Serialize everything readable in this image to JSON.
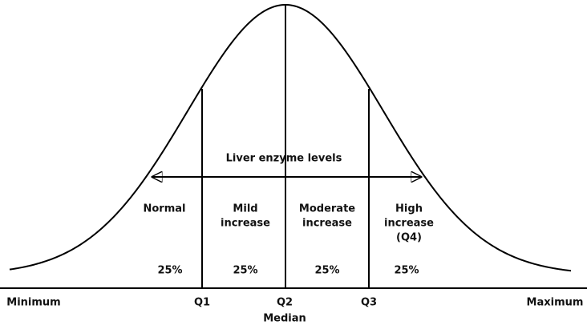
{
  "title": "Liver enzyme levels",
  "zones": [
    {
      "label": [
        "Normal"
      ],
      "share": "25%"
    },
    {
      "label": [
        "Mild",
        "increase"
      ],
      "share": "25%"
    },
    {
      "label": [
        "Moderate",
        "increase"
      ],
      "share": "25%"
    },
    {
      "label": [
        "High",
        "increase",
        "(Q4)"
      ],
      "share": "25%"
    }
  ],
  "axis_labels": [
    "Minimum",
    "Q1",
    "Q2",
    "Q3",
    "Maximum"
  ],
  "median_label": "Median"
}
